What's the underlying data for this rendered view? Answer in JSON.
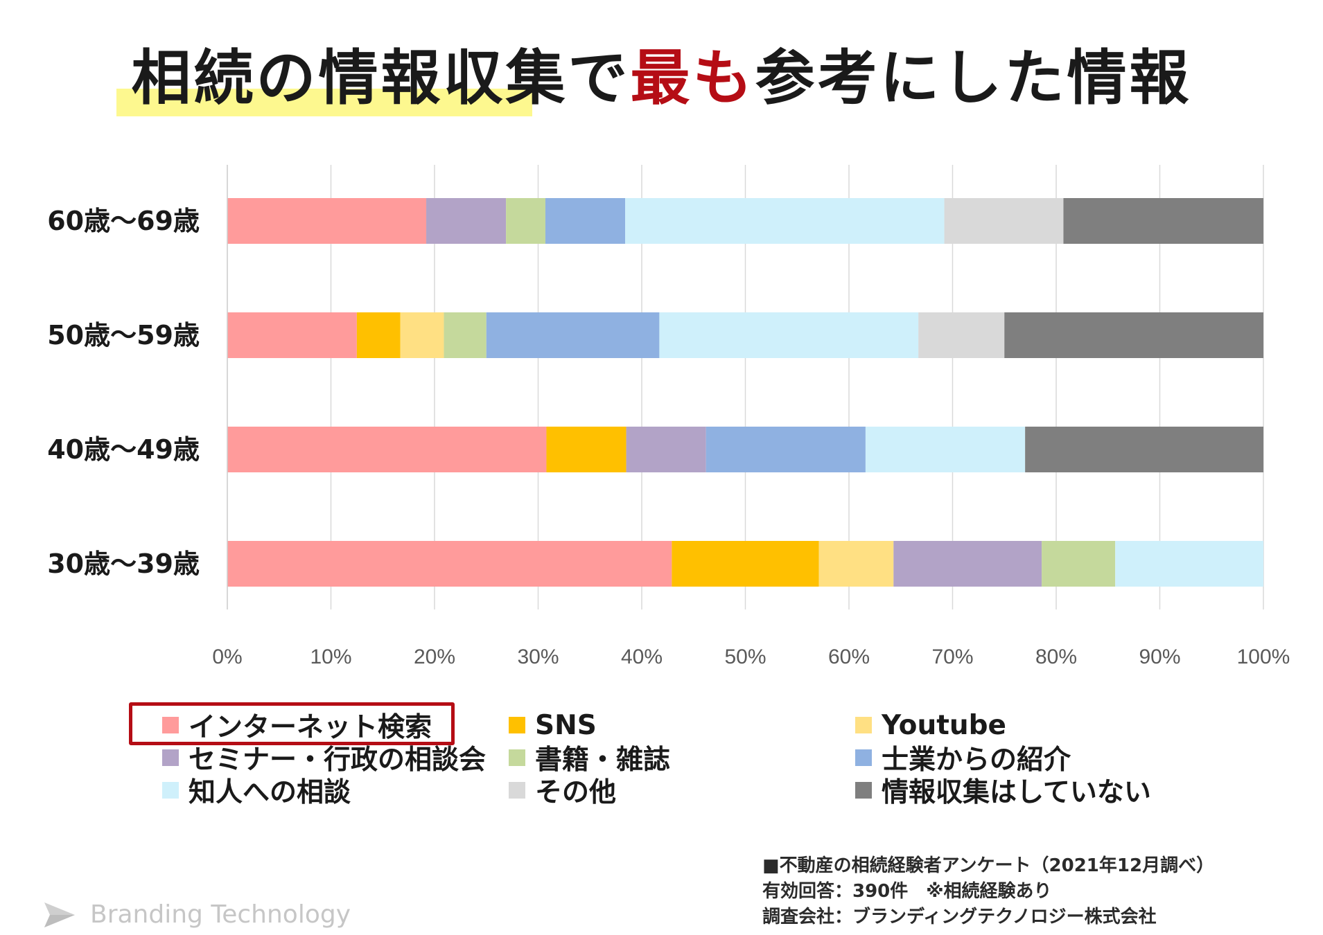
{
  "title": {
    "part1": "相続の情報収集で",
    "emphasis": "最も",
    "part2": "参考にした情報",
    "emphasis_color": "#b50d15",
    "highlight_color": "#fdf88f"
  },
  "chart_data": {
    "type": "bar",
    "orientation": "horizontal",
    "stacked": "percent",
    "categories": [
      "60歳～69歳",
      "50歳～59歳",
      "40歳～49歳",
      "30歳～39歳"
    ],
    "xlim": [
      0,
      100
    ],
    "x_ticks": [
      "0%",
      "10%",
      "20%",
      "30%",
      "40%",
      "50%",
      "60%",
      "70%",
      "80%",
      "90%",
      "100%"
    ],
    "grid": true,
    "legend_position": "bottom",
    "series": [
      {
        "name": "インターネット検索",
        "color": "#ff9b9b",
        "values": [
          19.2,
          12.5,
          30.8,
          42.9
        ]
      },
      {
        "name": "SNS",
        "color": "#ffc000",
        "values": [
          0,
          4.2,
          7.7,
          14.2
        ]
      },
      {
        "name": "Youtube",
        "color": "#ffe083",
        "values": [
          0,
          4.2,
          0,
          7.2
        ]
      },
      {
        "name": "セミナー・行政の相談会",
        "color": "#b2a3c7",
        "values": [
          7.7,
          0,
          7.7,
          14.3
        ]
      },
      {
        "name": "書籍・雑誌",
        "color": "#c5d99c",
        "values": [
          3.8,
          4.1,
          0,
          7.1
        ]
      },
      {
        "name": "士業からの紹介",
        "color": "#8fb1e1",
        "values": [
          7.7,
          16.7,
          15.4,
          0
        ]
      },
      {
        "name": "知人への相談",
        "color": "#cff0fb",
        "values": [
          30.8,
          25.0,
          15.4,
          14.3
        ]
      },
      {
        "name": "その他",
        "color": "#d9d9d9",
        "values": [
          11.5,
          8.3,
          0,
          0
        ]
      },
      {
        "name": "情報収集はしていない",
        "color": "#7f7f7f",
        "values": [
          19.3,
          25.0,
          23.0,
          0
        ]
      }
    ]
  },
  "legend_highlight_color": "#b50d15",
  "survey_note": [
    "■不動産の相続経験者アンケート（2021年12月調べ）",
    "有効回答：390件　※相続経験あり",
    "調査会社：ブランディングテクノロジー株式会社"
  ],
  "brand": {
    "name": "Branding Technology",
    "icon": "paper-plane-logo-icon",
    "color": "#c6c6c6"
  }
}
